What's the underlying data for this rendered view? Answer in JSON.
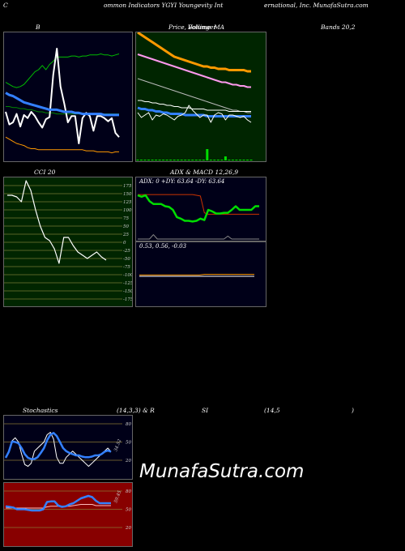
{
  "header": {
    "left": "C",
    "mid1": "ommon  Indicators YGYI Youngevity Int",
    "mid2": "ernational,  Inc. MunafaSutra.com"
  },
  "titles": {
    "bollinger": "B",
    "price_a": "Price,",
    "price_b": "Volume",
    "price_c": "Bollinger",
    "price_d": "MA",
    "bands": "Bands 20,2",
    "cci": "CCI 20",
    "adx_macd": "ADX  & MACD 12,26,9",
    "stoch_a": "Stochastics",
    "stoch_b": "(14,3,3) & R",
    "stoch_c": "SI",
    "stoch_d": "(14,5",
    "stoch_e": ")"
  },
  "adx_text": "ADX: 0  +DY: 63.64  -DY: 63.64",
  "macd_text": "0.53,  0.56,  -0.03",
  "watermark": "MunafaSutra.com",
  "colors": {
    "background": "#000000",
    "bollinger_bg": "#000018",
    "price_bg": "#002500",
    "cci_bg": "#002500",
    "adx_bg": "#000018",
    "stoch_bg": "#000018",
    "rsi_bg": "#880000",
    "orange": "#ff9900",
    "blue": "#3380ff",
    "green": "#00dd00",
    "pink": "#ff99ee"
  },
  "chart_data": [
    {
      "type": "line",
      "panel": "bollinger",
      "series": [
        {
          "values": [
            68,
            66,
            64,
            63,
            64,
            66,
            70,
            74,
            78,
            80,
            84,
            80,
            85,
            88,
            92,
            92,
            92,
            92,
            93,
            93,
            92,
            93,
            93,
            94,
            94,
            94,
            95,
            94,
            94,
            93,
            94,
            95
          ]
        },
        {
          "values": [
            45,
            45,
            44,
            44,
            43,
            43,
            42,
            42,
            41,
            40,
            40,
            39,
            39,
            39,
            38,
            38,
            38,
            38,
            38,
            38,
            38,
            38,
            38,
            38,
            38,
            38,
            38,
            38,
            38,
            38,
            38,
            38
          ]
        },
        {
          "values": [
            16,
            14,
            12,
            10,
            9,
            8,
            6,
            5,
            5,
            4,
            4,
            4,
            4,
            4,
            4,
            4,
            4,
            4,
            4,
            4,
            4,
            4,
            3,
            3,
            3,
            2,
            2,
            2,
            2,
            1,
            2,
            2
          ]
        },
        {
          "values": [
            40,
            28,
            30,
            38,
            26,
            37,
            34,
            40,
            36,
            30,
            25,
            33,
            35,
            75,
            100,
            64,
            48,
            30,
            36,
            36,
            10,
            34,
            39,
            36,
            22,
            36,
            36,
            34,
            31,
            34,
            20,
            16
          ]
        },
        {
          "values": [
            58,
            56,
            55,
            53,
            51,
            49,
            48,
            47,
            46,
            45,
            44,
            43,
            42,
            42,
            42,
            41,
            40,
            40,
            40,
            39,
            39,
            38,
            38,
            38,
            38,
            38,
            38,
            37,
            37,
            37,
            37,
            37
          ]
        }
      ]
    },
    {
      "type": "line",
      "panel": "price",
      "series": [
        {
          "values": [
            100,
            98,
            96,
            94,
            92,
            90,
            88,
            86,
            84,
            82,
            80,
            79,
            78,
            77,
            76,
            75,
            74,
            73,
            72,
            72,
            71,
            71,
            70,
            70,
            70,
            69,
            69,
            69,
            69,
            69,
            68,
            68
          ]
        },
        {
          "values": [
            82,
            81,
            80,
            79,
            78,
            77,
            76,
            75,
            74,
            73,
            72,
            71,
            70,
            69,
            68,
            67,
            66,
            65,
            64,
            63,
            62,
            61,
            60,
            59,
            59,
            58,
            57,
            57,
            56,
            56,
            55,
            55
          ]
        },
        {
          "values": [
            62,
            61,
            60,
            59,
            58,
            57,
            56,
            55,
            54,
            53,
            52,
            51,
            50,
            49,
            48,
            47,
            46,
            45,
            44,
            43,
            42,
            41,
            40,
            39,
            38,
            37,
            36,
            36,
            35,
            35,
            34,
            34
          ]
        },
        {
          "values": [
            38,
            37,
            37,
            36,
            36,
            35,
            35,
            34,
            34,
            33,
            33,
            33,
            33,
            32,
            32,
            32,
            32,
            32,
            32,
            31,
            31,
            31,
            31,
            31,
            31,
            31,
            31,
            31,
            31,
            31,
            31,
            31
          ]
        },
        {
          "values": [
            44,
            44,
            43,
            43,
            42,
            42,
            41,
            41,
            40,
            40,
            39,
            39,
            38,
            38,
            38,
            37,
            37,
            37,
            37,
            36,
            36,
            36,
            36,
            36,
            36,
            35,
            35,
            35,
            35,
            35,
            35,
            35
          ]
        },
        {
          "values": [
            34,
            30,
            32,
            34,
            28,
            32,
            31,
            33,
            32,
            30,
            28,
            31,
            32,
            34,
            40,
            36,
            33,
            30,
            32,
            32,
            26,
            32,
            34,
            33,
            28,
            32,
            32,
            31,
            30,
            31,
            28,
            26
          ]
        },
        {
          "values": [
            0,
            0,
            0,
            0,
            0,
            0,
            0,
            0,
            0,
            0,
            0,
            0,
            0,
            0,
            0,
            0,
            0,
            0,
            0,
            14,
            0,
            0,
            0,
            0,
            5,
            0,
            0,
            0,
            0,
            0,
            0,
            0
          ]
        }
      ]
    },
    {
      "type": "line",
      "panel": "cci",
      "y_ticks": [
        175,
        150,
        125,
        100,
        75,
        50,
        25,
        0,
        -25,
        -50,
        -75,
        -100,
        -125,
        -150,
        -175
      ],
      "series": [
        {
          "values": [
            145,
            145,
            140,
            125,
            190,
            160,
            100,
            50,
            15,
            5,
            -20,
            -65,
            15,
            15,
            -10,
            -30,
            -40,
            -50,
            -40,
            -30,
            -45,
            -55
          ]
        }
      ]
    },
    {
      "type": "line",
      "panel": "adx",
      "series": [
        {
          "name": "ADX",
          "values": [
            60,
            58,
            60,
            52,
            48,
            48,
            48,
            45,
            44,
            40,
            30,
            28,
            25,
            25,
            24,
            25,
            28,
            26,
            40,
            38,
            35,
            35,
            36,
            36,
            40,
            45,
            40,
            40,
            40,
            40,
            45,
            45
          ]
        },
        {
          "values": [
            61,
            61,
            61,
            61,
            61,
            61,
            61,
            61,
            61,
            61,
            61,
            61,
            61,
            61,
            61,
            60,
            59,
            36,
            34,
            34,
            34,
            34,
            34,
            34,
            34,
            34,
            34,
            34,
            34,
            34,
            34,
            34
          ]
        },
        {
          "values": [
            0,
            0,
            0,
            0,
            6,
            0,
            0,
            0,
            0,
            0,
            0,
            0,
            0,
            0,
            0,
            0,
            0,
            0,
            0,
            0,
            0,
            0,
            0,
            4,
            0,
            0,
            0,
            0,
            0,
            0,
            0,
            0
          ]
        }
      ]
    },
    {
      "type": "line",
      "panel": "macd",
      "series": [
        {
          "name": "MACD",
          "values": [
            0.53,
            0.53,
            0.53,
            0.53,
            0.53,
            0.53,
            0.53,
            0.53,
            0.53,
            0.53,
            0.53,
            0.53,
            0.53,
            0.53,
            0.53,
            0.53,
            0.53,
            0.53,
            0.53,
            0.53,
            0.53,
            0.53,
            0.53,
            0.53
          ]
        },
        {
          "name": "Signal",
          "values": [
            0.55,
            0.55,
            0.55,
            0.55,
            0.55,
            0.55,
            0.55,
            0.55,
            0.55,
            0.55,
            0.55,
            0.55,
            0.55,
            0.56,
            0.56,
            0.56,
            0.56,
            0.56,
            0.56,
            0.56,
            0.56,
            0.56,
            0.56,
            0.56
          ]
        }
      ]
    },
    {
      "type": "line",
      "panel": "stochastics",
      "y_ticks": [
        80,
        50,
        20
      ],
      "series_label": "34.52",
      "series": [
        {
          "values": [
            24,
            34,
            51,
            50,
            48,
            40,
            30,
            24,
            22,
            22,
            25,
            32,
            40,
            53,
            62,
            65,
            60,
            50,
            40,
            35,
            32,
            30,
            28,
            28,
            26,
            25,
            25,
            26,
            28,
            28,
            30,
            34,
            36,
            34
          ]
        },
        {
          "values": [
            25,
            35,
            52,
            57,
            50,
            30,
            13,
            10,
            15,
            35,
            40,
            45,
            50,
            62,
            66,
            55,
            25,
            15,
            15,
            25,
            30,
            35,
            30,
            25,
            20,
            15,
            10,
            15,
            20,
            25,
            30,
            35,
            40,
            34
          ]
        }
      ]
    },
    {
      "type": "line",
      "panel": "rsi",
      "y_ticks": [
        80,
        50,
        20
      ],
      "series_label": "59.45",
      "series": [
        {
          "values": [
            55,
            54,
            53,
            50,
            50,
            50,
            49,
            48,
            48,
            48,
            50,
            62,
            63,
            63,
            56,
            54,
            55,
            58,
            60,
            64,
            68,
            70,
            72,
            70,
            64,
            60,
            60,
            60,
            60
          ]
        },
        {
          "values": [
            52,
            52,
            52,
            52,
            52,
            52,
            52,
            52,
            52,
            52,
            52,
            54,
            55,
            55,
            55,
            55,
            55,
            55,
            56,
            57,
            58,
            58,
            58,
            58,
            56,
            56,
            56,
            56,
            56
          ]
        }
      ]
    }
  ]
}
